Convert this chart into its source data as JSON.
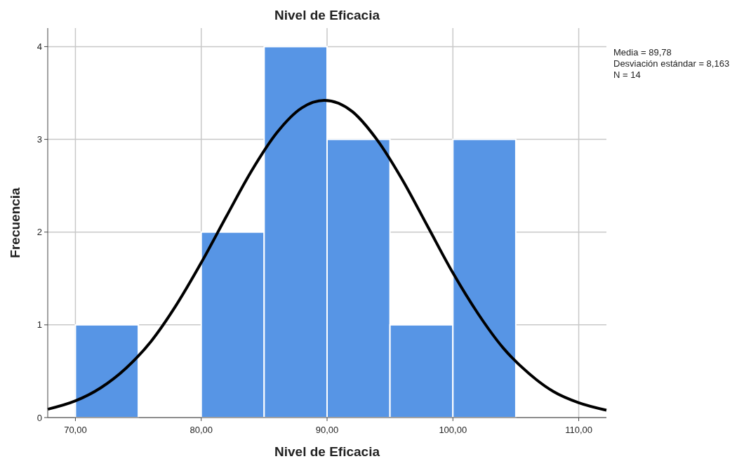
{
  "chart_data": {
    "type": "histogram",
    "title": "Nivel de Eficacia",
    "xlabel": "Nivel de Eficacia",
    "ylabel": "Frecuencia",
    "bins": [
      70,
      75,
      80,
      85,
      90,
      95,
      100,
      105
    ],
    "series": [
      {
        "color": "#5795e5",
        "values": [
          1,
          0,
          2,
          4,
          3,
          1,
          3
        ]
      },
      {
        "type": "line",
        "color": "#000000",
        "x": [
          67.8,
          70,
          72,
          74,
          76,
          78,
          80,
          82,
          84,
          86,
          88,
          89.78,
          92,
          94,
          96,
          98,
          100,
          102,
          104,
          106,
          108,
          110,
          112.2
        ],
        "values": [
          0.09,
          0.18,
          0.32,
          0.53,
          0.82,
          1.21,
          1.67,
          2.17,
          2.66,
          3.07,
          3.34,
          3.42,
          3.3,
          2.99,
          2.56,
          2.06,
          1.56,
          1.12,
          0.75,
          0.48,
          0.28,
          0.16,
          0.08
        ]
      }
    ],
    "xlim": [
      67.8,
      112.2
    ],
    "ylim": [
      0,
      4.2
    ],
    "xticks": [
      {
        "value": 70,
        "label": "70,00"
      },
      {
        "value": 80,
        "label": "80,00"
      },
      {
        "value": 90,
        "label": "90,00"
      },
      {
        "value": 100,
        "label": "100,00"
      },
      {
        "value": 110,
        "label": "110,00"
      }
    ],
    "yticks": [
      0,
      1,
      2,
      3,
      4
    ],
    "grid": true,
    "annotations": [
      "Media = 89,78",
      "Desviación estándar = 8,163",
      "N = 14"
    ]
  }
}
